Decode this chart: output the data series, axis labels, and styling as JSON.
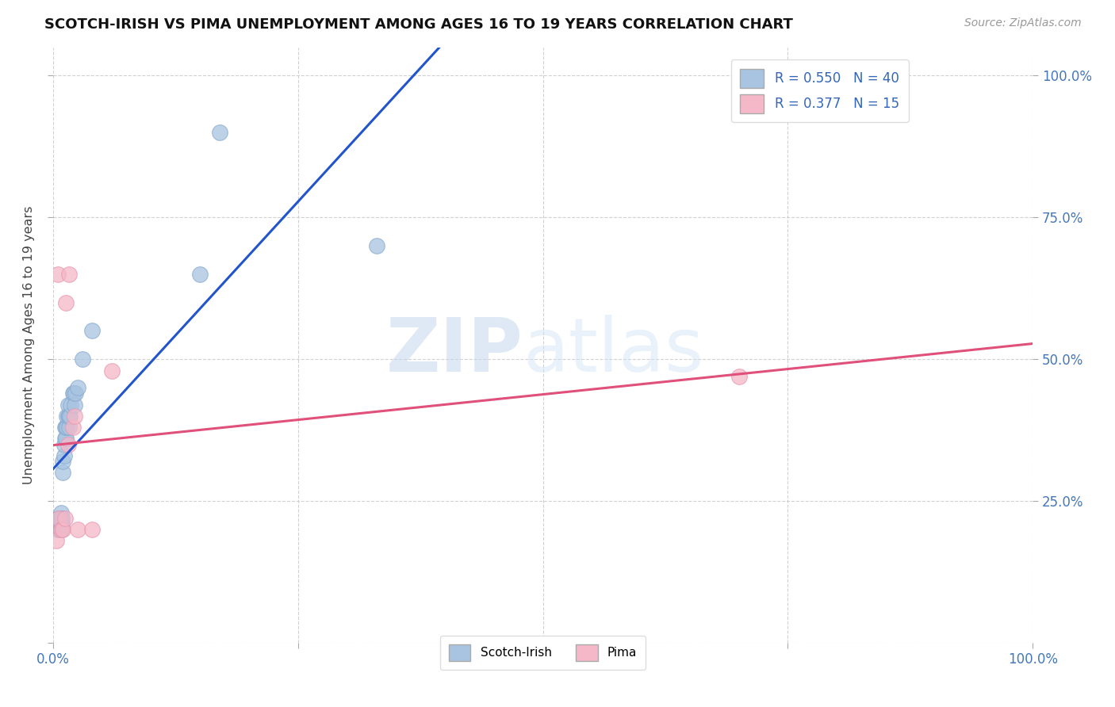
{
  "title": "SCOTCH-IRISH VS PIMA UNEMPLOYMENT AMONG AGES 16 TO 19 YEARS CORRELATION CHART",
  "source": "Source: ZipAtlas.com",
  "ylabel": "Unemployment Among Ages 16 to 19 years",
  "blue_r": 0.55,
  "blue_n": 40,
  "pink_r": 0.377,
  "pink_n": 15,
  "blue_color": "#a8c4e0",
  "blue_edge_color": "#88aad0",
  "pink_color": "#f4b8c8",
  "pink_edge_color": "#e898b0",
  "blue_line_color": "#2255cc",
  "pink_line_color": "#e0507a",
  "watermark_zip": "ZIP",
  "watermark_atlas": "atlas",
  "blue_scatter_x": [
    0.005,
    0.005,
    0.005,
    0.006,
    0.006,
    0.007,
    0.007,
    0.007,
    0.008,
    0.008,
    0.008,
    0.009,
    0.009,
    0.009,
    0.01,
    0.01,
    0.011,
    0.011,
    0.012,
    0.012,
    0.013,
    0.013,
    0.014,
    0.014,
    0.015,
    0.015,
    0.016,
    0.016,
    0.017,
    0.018,
    0.02,
    0.021,
    0.022,
    0.023,
    0.025,
    0.03,
    0.04,
    0.15,
    0.17,
    0.33
  ],
  "blue_scatter_y": [
    0.2,
    0.21,
    0.22,
    0.2,
    0.21,
    0.2,
    0.21,
    0.22,
    0.21,
    0.22,
    0.23,
    0.2,
    0.21,
    0.22,
    0.3,
    0.32,
    0.33,
    0.35,
    0.36,
    0.38,
    0.36,
    0.38,
    0.38,
    0.4,
    0.4,
    0.42,
    0.38,
    0.4,
    0.4,
    0.42,
    0.44,
    0.44,
    0.42,
    0.44,
    0.45,
    0.5,
    0.55,
    0.65,
    0.9,
    0.7
  ],
  "pink_scatter_x": [
    0.003,
    0.005,
    0.006,
    0.008,
    0.01,
    0.012,
    0.013,
    0.015,
    0.016,
    0.02,
    0.022,
    0.025,
    0.04,
    0.06,
    0.7
  ],
  "pink_scatter_y": [
    0.18,
    0.65,
    0.22,
    0.2,
    0.2,
    0.22,
    0.6,
    0.35,
    0.65,
    0.38,
    0.4,
    0.2,
    0.2,
    0.48,
    0.47
  ],
  "xlim": [
    0.0,
    1.0
  ],
  "ylim": [
    0.0,
    1.05
  ],
  "xtick_positions": [
    0.0,
    0.25,
    0.5,
    0.75,
    1.0
  ],
  "ytick_positions": [
    0.0,
    0.25,
    0.5,
    0.75,
    1.0
  ],
  "right_ytick_labels": [
    "100.0%",
    "75.0%",
    "50.0%",
    "25.0%"
  ],
  "right_ytick_pos": [
    1.0,
    0.75,
    0.5,
    0.25
  ],
  "bottom_legend_labels": [
    "Scotch-Irish",
    "Pima"
  ]
}
